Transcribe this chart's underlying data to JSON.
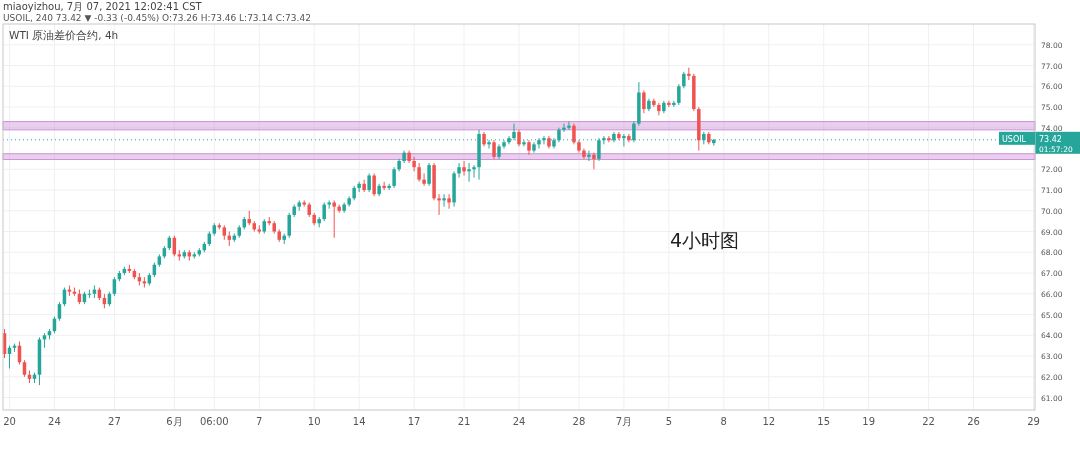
{
  "chart_data": {
    "type": "candlestick",
    "title": "WTI 原油差价合约, 4h",
    "annotations": [
      "miaoyizhou, 7月 07, 2021 12:02:41 CST",
      "USOIL, 240 73.42 ▼ -0.33 (-0.45%) O:73.26 H:73.46 L:73.14 C:73.42",
      "4小时图",
      "USOIL",
      "01:57:20"
    ],
    "categories": [
      null,
      "20",
      null,
      null,
      null,
      null,
      null,
      null,
      null,
      null,
      "24",
      null,
      null,
      null,
      null,
      null,
      null,
      null,
      null,
      null,
      null,
      null,
      "27",
      null,
      null,
      null,
      null,
      null,
      null,
      null,
      null,
      null,
      null,
      null,
      "6月",
      null,
      null,
      null,
      null,
      null,
      null,
      null,
      "06:00",
      null,
      null,
      null,
      null,
      null,
      null,
      null,
      null,
      "7",
      null,
      null,
      null,
      null,
      null,
      null,
      null,
      null,
      null,
      null,
      "10",
      null,
      null,
      null,
      null,
      null,
      null,
      null,
      null,
      "14",
      null,
      null,
      null,
      null,
      null,
      null,
      null,
      null,
      null,
      null,
      "17",
      null,
      null,
      null,
      null,
      null,
      null,
      null,
      null,
      null,
      "21",
      null,
      null,
      null,
      null,
      null,
      null,
      null,
      null,
      null,
      null,
      "24",
      null,
      null,
      null,
      null,
      null,
      null,
      null,
      null,
      null,
      null,
      null,
      "28",
      null,
      null,
      null,
      null,
      null,
      null,
      null,
      null,
      "7月",
      null,
      null,
      null,
      null,
      null,
      null,
      null,
      null,
      "5",
      null,
      null,
      null,
      null,
      null,
      null,
      null,
      null,
      null,
      null,
      "8",
      null,
      null,
      null,
      null,
      null,
      null,
      null,
      null,
      "12",
      null,
      null,
      null,
      null,
      null,
      null,
      null,
      null,
      null,
      null,
      "15",
      null,
      null,
      null,
      null,
      null,
      null,
      null,
      null,
      "19",
      null,
      null,
      null,
      null,
      null,
      null,
      null,
      null,
      null,
      null,
      null,
      "22",
      null,
      null,
      null,
      null,
      null,
      null,
      null,
      null,
      "26",
      null,
      null,
      null,
      null,
      null,
      null,
      null,
      null,
      null,
      null,
      null,
      "29"
    ],
    "ylim": [
      60.4,
      79.0
    ],
    "grid": true,
    "yticks": [
      {
        "value": 61,
        "label": "61.00"
      },
      {
        "value": 62,
        "label": "62.00"
      },
      {
        "value": 63,
        "label": "63.00"
      },
      {
        "value": 64,
        "label": "64.00"
      },
      {
        "value": 65,
        "label": "65.00"
      },
      {
        "value": 66,
        "label": "66.00"
      },
      {
        "value": 67,
        "label": "67.00"
      },
      {
        "value": 68,
        "label": "68.00"
      },
      {
        "value": 69,
        "label": "69.00"
      },
      {
        "value": 70,
        "label": "70.00"
      },
      {
        "value": 71,
        "label": "71.00"
      },
      {
        "value": 72,
        "label": "72.00"
      },
      {
        "value": 74,
        "label": "74.00"
      },
      {
        "value": 75,
        "label": "75.00"
      },
      {
        "value": 76,
        "label": "76.00"
      },
      {
        "value": 77,
        "label": "77.00"
      },
      {
        "value": 78,
        "label": "78.00"
      }
    ],
    "ref_lines": [
      {
        "axis": "y",
        "value": 73.42,
        "label": "73.42",
        "color": "#26a69a",
        "line_style": "dotted"
      }
    ],
    "bands": [
      {
        "axis": "y",
        "from": 73.9,
        "to": 74.3,
        "color": "#ce93d8"
      },
      {
        "axis": "y",
        "from": 72.47,
        "to": 72.75,
        "color": "#ce93d8"
      }
    ],
    "ohlc": [
      [
        64.1,
        64.3,
        62.9,
        63.1
      ],
      [
        63.1,
        63.5,
        62.4,
        63.4
      ],
      [
        63.4,
        63.6,
        63.2,
        63.5
      ],
      [
        63.5,
        63.7,
        62.6,
        62.7
      ],
      [
        62.7,
        62.8,
        62.0,
        62.1
      ],
      [
        62.1,
        62.3,
        61.7,
        61.9
      ],
      [
        61.9,
        62.2,
        61.7,
        62.1
      ],
      [
        62.1,
        63.9,
        61.6,
        63.8
      ],
      [
        63.8,
        64.1,
        63.4,
        64.0
      ],
      [
        64.0,
        64.3,
        63.8,
        64.2
      ],
      [
        64.2,
        64.9,
        64.1,
        64.8
      ],
      [
        64.8,
        65.6,
        64.7,
        65.5
      ],
      [
        65.5,
        66.3,
        65.4,
        66.2
      ],
      [
        66.2,
        66.4,
        65.9,
        66.1
      ],
      [
        66.1,
        66.3,
        65.9,
        66.0
      ],
      [
        66.0,
        66.2,
        65.5,
        65.6
      ],
      [
        65.6,
        66.1,
        65.5,
        66.0
      ],
      [
        66.0,
        66.2,
        65.8,
        66.0
      ],
      [
        66.0,
        66.4,
        65.8,
        66.2
      ],
      [
        66.2,
        66.3,
        65.7,
        65.8
      ],
      [
        65.8,
        66.0,
        65.3,
        65.5
      ],
      [
        65.5,
        66.1,
        65.4,
        66.0
      ],
      [
        66.0,
        66.8,
        65.9,
        66.7
      ],
      [
        66.7,
        67.1,
        66.6,
        67.0
      ],
      [
        67.0,
        67.3,
        66.9,
        67.2
      ],
      [
        67.2,
        67.4,
        67.0,
        67.1
      ],
      [
        67.1,
        67.2,
        66.7,
        66.8
      ],
      [
        66.8,
        67.0,
        66.4,
        66.6
      ],
      [
        66.6,
        66.8,
        66.3,
        66.5
      ],
      [
        66.5,
        67.0,
        66.4,
        66.9
      ],
      [
        66.9,
        67.5,
        66.8,
        67.4
      ],
      [
        67.4,
        67.9,
        67.3,
        67.8
      ],
      [
        67.8,
        68.3,
        67.7,
        68.2
      ],
      [
        68.2,
        68.8,
        68.1,
        68.7
      ],
      [
        68.7,
        68.8,
        67.8,
        67.9
      ],
      [
        67.9,
        68.1,
        67.6,
        67.8
      ],
      [
        67.8,
        68.1,
        67.7,
        68.0
      ],
      [
        68.0,
        68.1,
        67.6,
        67.8
      ],
      [
        67.8,
        68.0,
        67.7,
        67.9
      ],
      [
        67.9,
        68.2,
        67.8,
        68.1
      ],
      [
        68.1,
        68.5,
        68.0,
        68.4
      ],
      [
        68.4,
        69.0,
        68.3,
        68.9
      ],
      [
        68.9,
        69.4,
        68.8,
        69.3
      ],
      [
        69.3,
        69.4,
        69.1,
        69.2
      ],
      [
        69.2,
        69.3,
        68.6,
        68.8
      ],
      [
        68.8,
        69.0,
        68.3,
        68.6
      ],
      [
        68.6,
        68.9,
        68.5,
        68.8
      ],
      [
        68.8,
        69.3,
        68.7,
        69.2
      ],
      [
        69.2,
        69.7,
        69.1,
        69.6
      ],
      [
        69.6,
        70.0,
        69.3,
        69.4
      ],
      [
        69.4,
        69.5,
        69.0,
        69.1
      ],
      [
        69.1,
        69.3,
        68.9,
        69.0
      ],
      [
        69.0,
        69.6,
        68.9,
        69.5
      ],
      [
        69.5,
        69.7,
        69.3,
        69.4
      ],
      [
        69.4,
        69.5,
        68.9,
        69.0
      ],
      [
        69.0,
        69.1,
        68.5,
        68.6
      ],
      [
        68.6,
        68.9,
        68.4,
        68.8
      ],
      [
        68.8,
        69.9,
        68.7,
        69.8
      ],
      [
        69.8,
        70.3,
        69.7,
        70.2
      ],
      [
        70.2,
        70.5,
        70.0,
        70.4
      ],
      [
        70.4,
        70.5,
        70.2,
        70.3
      ],
      [
        70.3,
        70.4,
        69.7,
        69.8
      ],
      [
        69.8,
        69.9,
        69.3,
        69.4
      ],
      [
        69.4,
        69.7,
        69.2,
        69.6
      ],
      [
        69.6,
        70.4,
        69.5,
        70.3
      ],
      [
        70.3,
        70.5,
        70.1,
        70.4
      ],
      [
        70.4,
        70.5,
        68.7,
        70.2
      ],
      [
        70.2,
        70.3,
        69.9,
        70.0
      ],
      [
        70.0,
        70.4,
        69.9,
        70.3
      ],
      [
        70.3,
        70.7,
        70.2,
        70.6
      ],
      [
        70.6,
        71.2,
        70.5,
        71.1
      ],
      [
        71.1,
        71.4,
        70.9,
        71.3
      ],
      [
        71.3,
        71.5,
        70.9,
        71.0
      ],
      [
        71.0,
        71.8,
        70.9,
        71.7
      ],
      [
        71.7,
        71.8,
        70.7,
        70.8
      ],
      [
        70.8,
        71.3,
        70.7,
        71.2
      ],
      [
        71.2,
        71.4,
        71.0,
        71.1
      ],
      [
        71.1,
        71.3,
        71.0,
        71.2
      ],
      [
        71.2,
        72.1,
        71.1,
        72.0
      ],
      [
        72.0,
        72.5,
        71.9,
        72.4
      ],
      [
        72.4,
        72.9,
        72.3,
        72.8
      ],
      [
        72.8,
        72.9,
        72.3,
        72.4
      ],
      [
        72.4,
        72.6,
        71.9,
        72.1
      ],
      [
        72.1,
        72.3,
        71.4,
        71.5
      ],
      [
        71.5,
        71.8,
        71.2,
        71.3
      ],
      [
        71.3,
        72.3,
        71.2,
        72.2
      ],
      [
        72.2,
        72.3,
        70.5,
        70.6
      ],
      [
        70.6,
        70.8,
        69.8,
        70.5
      ],
      [
        70.5,
        70.8,
        70.2,
        70.6
      ],
      [
        70.6,
        70.8,
        70.1,
        70.4
      ],
      [
        70.4,
        71.9,
        70.2,
        71.8
      ],
      [
        71.8,
        72.3,
        71.6,
        72.1
      ],
      [
        72.1,
        72.4,
        71.7,
        71.9
      ],
      [
        71.9,
        72.3,
        71.4,
        72.0
      ],
      [
        72.0,
        72.2,
        71.6,
        72.1
      ],
      [
        72.1,
        73.9,
        71.5,
        73.7
      ],
      [
        73.7,
        73.8,
        73.1,
        73.2
      ],
      [
        73.2,
        73.4,
        73.0,
        73.3
      ],
      [
        73.3,
        73.4,
        72.5,
        72.6
      ],
      [
        72.6,
        73.2,
        72.5,
        73.1
      ],
      [
        73.1,
        73.4,
        73.0,
        73.3
      ],
      [
        73.3,
        73.6,
        73.2,
        73.5
      ],
      [
        73.5,
        74.2,
        73.4,
        73.8
      ],
      [
        73.8,
        73.9,
        73.1,
        73.2
      ],
      [
        73.2,
        73.4,
        73.1,
        73.3
      ],
      [
        73.3,
        73.4,
        72.7,
        72.9
      ],
      [
        72.9,
        73.3,
        72.8,
        73.2
      ],
      [
        73.2,
        73.5,
        73.0,
        73.4
      ],
      [
        73.4,
        73.6,
        73.2,
        73.5
      ],
      [
        73.5,
        73.6,
        73.0,
        73.1
      ],
      [
        73.1,
        73.5,
        73.0,
        73.4
      ],
      [
        73.4,
        74.0,
        73.3,
        73.9
      ],
      [
        73.9,
        74.2,
        73.8,
        74.0
      ],
      [
        74.0,
        74.3,
        73.9,
        74.1
      ],
      [
        74.1,
        74.2,
        73.2,
        73.3
      ],
      [
        73.3,
        73.4,
        72.8,
        72.9
      ],
      [
        72.9,
        73.0,
        72.5,
        72.6
      ],
      [
        72.6,
        72.9,
        72.4,
        72.7
      ],
      [
        72.7,
        72.8,
        72.0,
        72.5
      ],
      [
        72.5,
        73.5,
        72.4,
        73.4
      ],
      [
        73.4,
        73.6,
        73.2,
        73.5
      ],
      [
        73.5,
        73.6,
        73.3,
        73.4
      ],
      [
        73.4,
        73.8,
        73.3,
        73.7
      ],
      [
        73.7,
        73.8,
        73.4,
        73.5
      ],
      [
        73.5,
        73.7,
        73.1,
        73.6
      ],
      [
        73.6,
        73.7,
        73.3,
        73.4
      ],
      [
        73.4,
        74.3,
        73.3,
        74.2
      ],
      [
        74.2,
        76.2,
        74.1,
        75.7
      ],
      [
        75.7,
        75.8,
        74.7,
        74.9
      ],
      [
        74.9,
        75.4,
        74.8,
        75.3
      ],
      [
        75.3,
        75.4,
        75.0,
        75.1
      ],
      [
        75.1,
        75.2,
        74.6,
        74.8
      ],
      [
        74.8,
        75.3,
        74.7,
        75.2
      ],
      [
        75.2,
        75.3,
        75.0,
        75.1
      ],
      [
        75.1,
        75.3,
        75.0,
        75.2
      ],
      [
        75.2,
        76.1,
        75.1,
        76.0
      ],
      [
        76.0,
        76.7,
        75.9,
        76.6
      ],
      [
        76.6,
        76.9,
        76.3,
        76.5
      ],
      [
        76.5,
        76.6,
        74.8,
        74.9
      ],
      [
        74.9,
        75.0,
        72.9,
        73.4
      ],
      [
        73.4,
        73.8,
        73.2,
        73.7
      ],
      [
        73.7,
        73.8,
        73.2,
        73.3
      ],
      [
        73.26,
        73.46,
        73.14,
        73.42
      ],
      null,
      null,
      null,
      null,
      null,
      null,
      null,
      null,
      null,
      null,
      null,
      null,
      null,
      null,
      null,
      null,
      null,
      null,
      null,
      null,
      null,
      null,
      null,
      null,
      null,
      null,
      null,
      null,
      null,
      null,
      null,
      null,
      null,
      null,
      null,
      null,
      null,
      null,
      null,
      null,
      null,
      null,
      null,
      null,
      null,
      null,
      null,
      null,
      null,
      null,
      null,
      null,
      null,
      null,
      null,
      null,
      null,
      null,
      null,
      null,
      null,
      null,
      null,
      null
    ],
    "colors": [
      "#ef5350",
      "#26a69a",
      "#26a69a",
      "#ef5350",
      "#ef5350",
      "#ef5350",
      "#26a69a",
      "#26a69a",
      "#26a69a",
      "#26a69a",
      "#26a69a",
      "#26a69a",
      "#26a69a",
      "#ef5350",
      "#ef5350",
      "#ef5350",
      "#26a69a",
      "#26a69a",
      "#26a69a",
      "#ef5350",
      "#ef5350",
      "#26a69a",
      "#26a69a",
      "#26a69a",
      "#26a69a",
      "#ef5350",
      "#ef5350",
      "#ef5350",
      "#ef5350",
      "#26a69a",
      "#26a69a",
      "#26a69a",
      "#26a69a",
      "#26a69a",
      "#ef5350",
      "#ef5350",
      "#26a69a",
      "#ef5350",
      "#26a69a",
      "#26a69a",
      "#26a69a",
      "#26a69a",
      "#26a69a",
      "#ef5350",
      "#ef5350",
      "#ef5350",
      "#26a69a",
      "#26a69a",
      "#26a69a",
      "#ef5350",
      "#ef5350",
      "#ef5350",
      "#26a69a",
      "#ef5350",
      "#ef5350",
      "#ef5350",
      "#26a69a",
      "#26a69a",
      "#26a69a",
      "#26a69a",
      "#ef5350",
      "#ef5350",
      "#ef5350",
      "#26a69a",
      "#26a69a",
      "#26a69a",
      "#ef5350",
      "#ef5350",
      "#26a69a",
      "#26a69a",
      "#26a69a",
      "#26a69a",
      "#ef5350",
      "#26a69a",
      "#ef5350",
      "#26a69a",
      "#ef5350",
      "#26a69a",
      "#26a69a",
      "#26a69a",
      "#26a69a",
      "#ef5350",
      "#ef5350",
      "#ef5350",
      "#ef5350",
      "#26a69a",
      "#ef5350",
      "#ef5350",
      "#26a69a",
      "#ef5350",
      "#26a69a",
      "#26a69a",
      "#ef5350",
      "#26a69a",
      "#26a69a",
      "#26a69a",
      "#ef5350",
      "#26a69a",
      "#ef5350",
      "#26a69a",
      "#26a69a",
      "#26a69a",
      "#26a69a",
      "#ef5350",
      "#26a69a",
      "#ef5350",
      "#26a69a",
      "#26a69a",
      "#26a69a",
      "#ef5350",
      "#26a69a",
      "#26a69a",
      "#26a69a",
      "#26a69a",
      "#ef5350",
      "#ef5350",
      "#ef5350",
      "#26a69a",
      "#ef5350",
      "#26a69a",
      "#26a69a",
      "#ef5350",
      "#26a69a",
      "#ef5350",
      "#26a69a",
      "#ef5350",
      "#26a69a",
      "#26a69a",
      "#ef5350",
      "#26a69a",
      "#ef5350",
      "#ef5350",
      "#26a69a",
      "#ef5350",
      "#26a69a",
      "#26a69a",
      "#26a69a",
      "#ef5350",
      "#ef5350",
      "#ef5350",
      "#26a69a",
      "#ef5350",
      "#26a69a",
      null,
      null,
      null,
      null,
      null,
      null,
      null,
      null,
      null,
      null,
      null,
      null,
      null,
      null,
      null,
      null,
      null,
      null,
      null,
      null,
      null,
      null,
      null,
      null,
      null,
      null,
      null,
      null,
      null,
      null,
      null,
      null,
      null,
      null,
      null,
      null,
      null,
      null,
      null,
      null,
      null,
      null,
      null,
      null,
      null,
      null,
      null,
      null,
      null,
      null,
      null,
      null,
      null,
      null,
      null,
      null,
      null,
      null,
      null,
      null,
      null,
      null,
      null,
      null
    ]
  }
}
